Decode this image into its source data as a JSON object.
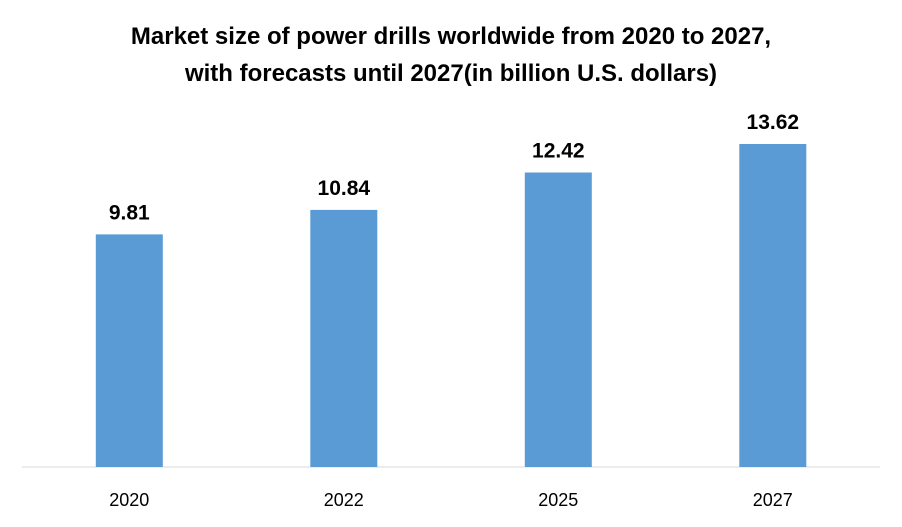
{
  "chart_data": {
    "type": "bar",
    "title_line1": "Market size of power drills worldwide from 2020 to 2027,",
    "title_line2": "with forecasts until 2027(in billion U.S. dollars)",
    "categories": [
      "2020",
      "2022",
      "2025",
      "2027"
    ],
    "values": [
      9.81,
      10.84,
      12.42,
      13.62
    ],
    "value_labels": [
      "9.81",
      "10.84",
      "12.42",
      "13.62"
    ],
    "xlabel": "",
    "ylabel": "",
    "ylim": [
      0,
      14
    ],
    "grid": false,
    "legend": "none",
    "bar_color": "#5b9bd5"
  }
}
